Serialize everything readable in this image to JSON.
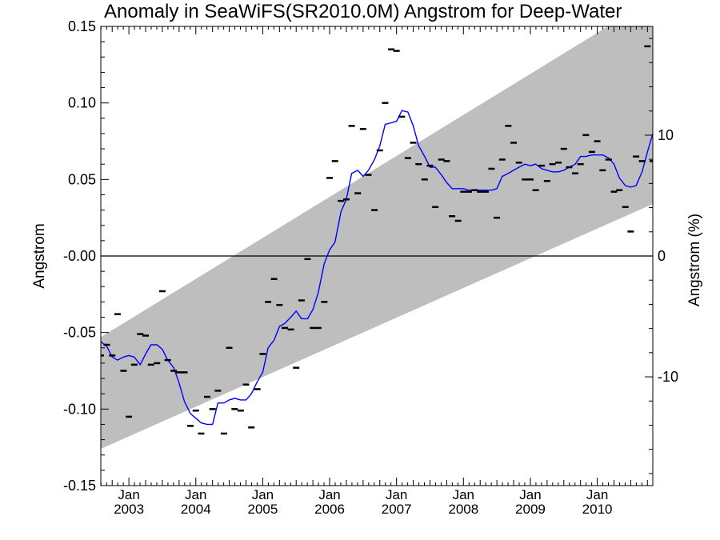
{
  "chart_data": {
    "type": "line",
    "title": "Anomaly in SeaWiFS(SR2010.0M) Angstrom for Deep-Water",
    "ylabel": "Angstrom",
    "ylabel_right": "Angstrom (%)",
    "xlim": [
      2002.58,
      2010.83
    ],
    "ylim": [
      -0.15,
      0.15
    ],
    "ylim_right": [
      -19,
      19
    ],
    "y_ticks": [
      {
        "v": 0.15,
        "t": "0.15"
      },
      {
        "v": 0.1,
        "t": "0.10"
      },
      {
        "v": 0.05,
        "t": "0.05"
      },
      {
        "v": 0.0,
        "t": "-0.00"
      },
      {
        "v": -0.05,
        "t": "-0.05"
      },
      {
        "v": -0.1,
        "t": "-0.10"
      },
      {
        "v": -0.15,
        "t": "-0.15"
      }
    ],
    "y_right_ticks": [
      {
        "v": 10,
        "t": "10"
      },
      {
        "v": 0,
        "t": "0"
      },
      {
        "v": -10,
        "t": "-10"
      }
    ],
    "x_ticks": [
      {
        "v": 2003.0,
        "month": "Jan",
        "year": "2003"
      },
      {
        "v": 2004.0,
        "month": "Jan",
        "year": "2004"
      },
      {
        "v": 2005.0,
        "month": "Jan",
        "year": "2005"
      },
      {
        "v": 2006.0,
        "month": "Jan",
        "year": "2006"
      },
      {
        "v": 2007.0,
        "month": "Jan",
        "year": "2007"
      },
      {
        "v": 2008.0,
        "month": "Jan",
        "year": "2008"
      },
      {
        "v": 2009.0,
        "month": "Jan",
        "year": "2009"
      },
      {
        "v": 2010.0,
        "month": "Jan",
        "year": "2010"
      }
    ],
    "band": {
      "color": "#bebebe",
      "upper": [
        [
          2002.58,
          -0.053
        ],
        [
          2010.83,
          0.168
        ]
      ],
      "lower": [
        [
          2002.58,
          -0.126
        ],
        [
          2010.83,
          0.034
        ]
      ]
    },
    "zero_line": 0,
    "series": [
      {
        "kind": "line",
        "color": "#0000ff",
        "x": [
          2002.58,
          2002.67,
          2002.75,
          2002.83,
          2002.92,
          2003.0,
          2003.08,
          2003.17,
          2003.25,
          2003.33,
          2003.42,
          2003.5,
          2003.58,
          2003.67,
          2003.75,
          2003.83,
          2003.92,
          2004.0,
          2004.08,
          2004.17,
          2004.25,
          2004.33,
          2004.42,
          2004.5,
          2004.58,
          2004.67,
          2004.75,
          2004.83,
          2004.92,
          2005.0,
          2005.08,
          2005.17,
          2005.25,
          2005.33,
          2005.42,
          2005.5,
          2005.58,
          2005.67,
          2005.75,
          2005.83,
          2005.92,
          2006.0,
          2006.08,
          2006.17,
          2006.25,
          2006.33,
          2006.42,
          2006.5,
          2006.58,
          2006.67,
          2006.75,
          2006.83,
          2006.92,
          2007.0,
          2007.08,
          2007.17,
          2007.25,
          2007.33,
          2007.42,
          2007.5,
          2007.58,
          2007.67,
          2007.75,
          2007.83,
          2007.92,
          2008.0,
          2008.08,
          2008.17,
          2008.25,
          2008.33,
          2008.42,
          2008.5,
          2008.58,
          2008.67,
          2008.75,
          2008.83,
          2008.92,
          2009.0,
          2009.08,
          2009.17,
          2009.25,
          2009.33,
          2009.42,
          2009.5,
          2009.58,
          2009.67,
          2009.75,
          2009.83,
          2009.92,
          2010.0,
          2010.08,
          2010.17,
          2010.25,
          2010.33,
          2010.42,
          2010.5,
          2010.58,
          2010.67,
          2010.75,
          2010.83
        ],
        "y": [
          -0.056,
          -0.059,
          -0.066,
          -0.068,
          -0.066,
          -0.065,
          -0.066,
          -0.071,
          -0.064,
          -0.058,
          -0.058,
          -0.061,
          -0.068,
          -0.073,
          -0.083,
          -0.095,
          -0.103,
          -0.106,
          -0.109,
          -0.11,
          -0.11,
          -0.096,
          -0.096,
          -0.094,
          -0.093,
          -0.094,
          -0.094,
          -0.09,
          -0.082,
          -0.076,
          -0.06,
          -0.055,
          -0.046,
          -0.044,
          -0.04,
          -0.036,
          -0.041,
          -0.041,
          -0.035,
          -0.024,
          -0.005,
          0.004,
          0.009,
          0.029,
          0.037,
          0.054,
          0.056,
          0.052,
          0.056,
          0.063,
          0.072,
          0.086,
          0.087,
          0.088,
          0.095,
          0.094,
          0.085,
          0.072,
          0.065,
          0.058,
          0.058,
          0.053,
          0.048,
          0.044,
          0.044,
          0.044,
          0.043,
          0.043,
          0.043,
          0.043,
          0.043,
          0.044,
          0.052,
          0.054,
          0.056,
          0.058,
          0.06,
          0.059,
          0.06,
          0.057,
          0.056,
          0.055,
          0.055,
          0.056,
          0.058,
          0.06,
          0.065,
          0.065,
          0.066,
          0.066,
          0.066,
          0.064,
          0.06,
          0.051,
          0.046,
          0.045,
          0.046,
          0.055,
          0.068,
          0.08
        ]
      },
      {
        "kind": "dash",
        "color": "#000000",
        "x": [
          2002.58,
          2002.67,
          2002.75,
          2002.83,
          2002.92,
          2003.0,
          2003.08,
          2003.17,
          2003.25,
          2003.33,
          2003.42,
          2003.5,
          2003.58,
          2003.67,
          2003.75,
          2003.83,
          2003.92,
          2004.0,
          2004.08,
          2004.17,
          2004.25,
          2004.33,
          2004.42,
          2004.5,
          2004.58,
          2004.67,
          2004.75,
          2004.83,
          2004.92,
          2005.0,
          2005.08,
          2005.17,
          2005.25,
          2005.33,
          2005.42,
          2005.5,
          2005.58,
          2005.67,
          2005.75,
          2005.83,
          2005.92,
          2006.0,
          2006.08,
          2006.17,
          2006.25,
          2006.33,
          2006.42,
          2006.5,
          2006.58,
          2006.67,
          2006.75,
          2006.83,
          2006.92,
          2007.0,
          2007.08,
          2007.17,
          2007.25,
          2007.33,
          2007.42,
          2007.5,
          2007.58,
          2007.67,
          2007.75,
          2007.83,
          2007.92,
          2008.0,
          2008.08,
          2008.17,
          2008.25,
          2008.33,
          2008.42,
          2008.5,
          2008.58,
          2008.67,
          2008.75,
          2008.83,
          2008.92,
          2009.0,
          2009.08,
          2009.17,
          2009.25,
          2009.33,
          2009.42,
          2009.5,
          2009.58,
          2009.67,
          2009.75,
          2009.83,
          2009.92,
          2010.0,
          2010.08,
          2010.17,
          2010.25,
          2010.33,
          2010.42,
          2010.5,
          2010.58,
          2010.67,
          2010.75,
          2010.83
        ],
        "y": [
          -0.065,
          -0.058,
          -0.065,
          -0.038,
          -0.075,
          -0.105,
          -0.071,
          -0.051,
          -0.052,
          -0.071,
          -0.07,
          -0.023,
          -0.068,
          -0.075,
          -0.076,
          -0.076,
          -0.111,
          -0.101,
          -0.116,
          -0.092,
          -0.1,
          -0.088,
          -0.116,
          -0.06,
          -0.1,
          -0.101,
          -0.084,
          -0.112,
          -0.087,
          -0.064,
          -0.03,
          -0.015,
          -0.032,
          -0.047,
          -0.048,
          -0.073,
          -0.029,
          -0.002,
          -0.047,
          -0.047,
          -0.03,
          0.051,
          0.062,
          0.036,
          0.037,
          0.085,
          0.041,
          0.083,
          0.053,
          0.03,
          0.069,
          0.1,
          0.135,
          0.134,
          0.091,
          0.064,
          0.074,
          0.06,
          0.05,
          0.059,
          0.032,
          0.063,
          0.062,
          0.026,
          0.023,
          0.042,
          0.042,
          0.043,
          0.042,
          0.042,
          0.057,
          0.025,
          0.063,
          0.085,
          0.074,
          0.061,
          0.05,
          0.05,
          0.043,
          0.059,
          0.049,
          0.06,
          0.061,
          0.07,
          0.058,
          0.054,
          0.06,
          0.079,
          0.068,
          0.075,
          0.056,
          0.063,
          0.042,
          0.043,
          0.032,
          0.016,
          0.065,
          0.062,
          0.137,
          0.062
        ]
      }
    ]
  }
}
